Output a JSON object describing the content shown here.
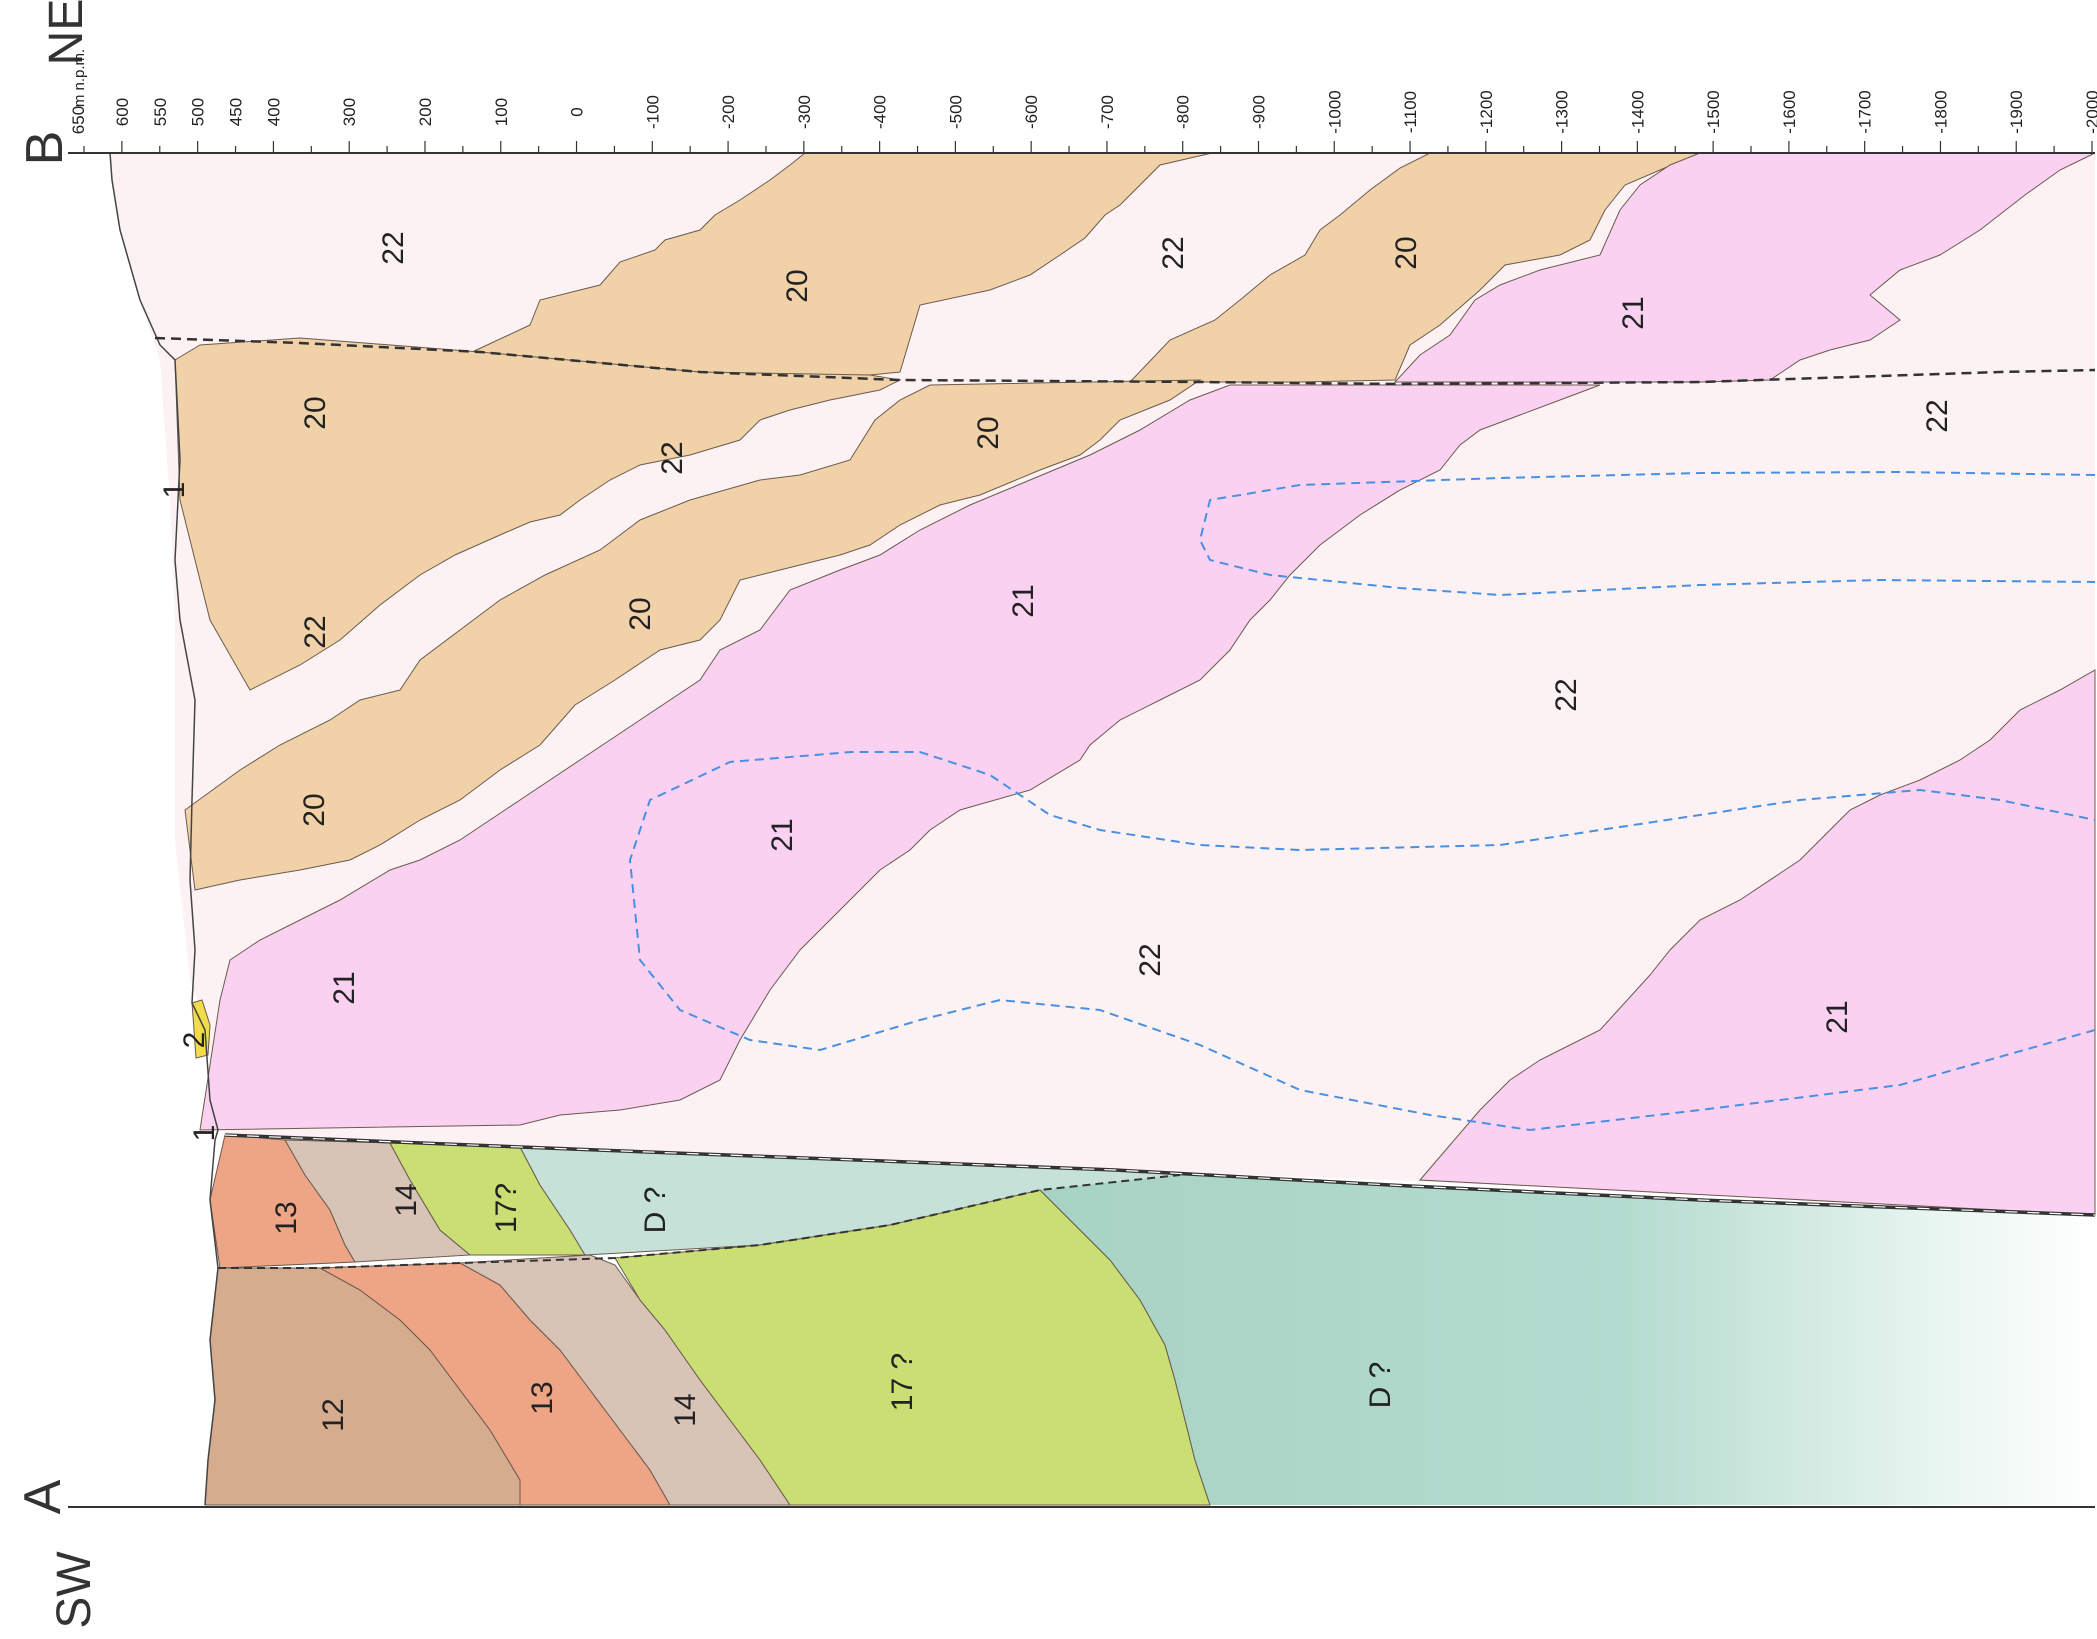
{
  "section": {
    "start_label": "A",
    "end_label": "B",
    "start_direction": "SW",
    "end_direction": "NE",
    "depth_units": "m n.p.m."
  },
  "depth_axis": {
    "top_label": "650",
    "ticks": [
      "600",
      "550",
      "500",
      "450",
      "400",
      "300",
      "200",
      "100",
      "0",
      "-100",
      "-200",
      "-300",
      "-400",
      "-500",
      "-600",
      "-700",
      "-800",
      "-900",
      "-1000",
      "-1100",
      "-1200",
      "-1300",
      "-1400",
      "-1500",
      "-1600",
      "-1700",
      "-1800",
      "-1900",
      "-2000"
    ]
  },
  "colors": {
    "unit_12": "#d6ac8f",
    "unit_13": "#eea585",
    "unit_14": "#d8c4b6",
    "unit_17": "#c9de73",
    "unit_D": "#a7d3c4",
    "unit_D_upper": "#c6e2d8",
    "unit_20": "#f1d2a8",
    "unit_21": "#fad1f1",
    "unit_22": "#fcf1f3",
    "unit_2": "#f3dc4a",
    "fault_line": "#333333",
    "blue_contour": "#4a90e2"
  },
  "unit_labels": {
    "u12": "12",
    "u13a": "13",
    "u13b": "13",
    "u14a": "14",
    "u14b": "14",
    "u17a": "17?",
    "u17b": "17 ?",
    "uDa": "D ?",
    "uDb": "D ?",
    "u2": "2",
    "u1a": "1",
    "u1b": "1",
    "u20a": "20",
    "u20b": "20",
    "u20c": "20",
    "u20d": "20",
    "u20e": "20",
    "u20f": "20",
    "u21a": "21",
    "u21b": "21",
    "u21c": "21",
    "u21d": "21",
    "u21e": "21",
    "u22a": "22",
    "u22b": "22",
    "u22c": "22",
    "u22d": "22",
    "u22e": "22",
    "u22f": "22",
    "u22g": "22"
  }
}
